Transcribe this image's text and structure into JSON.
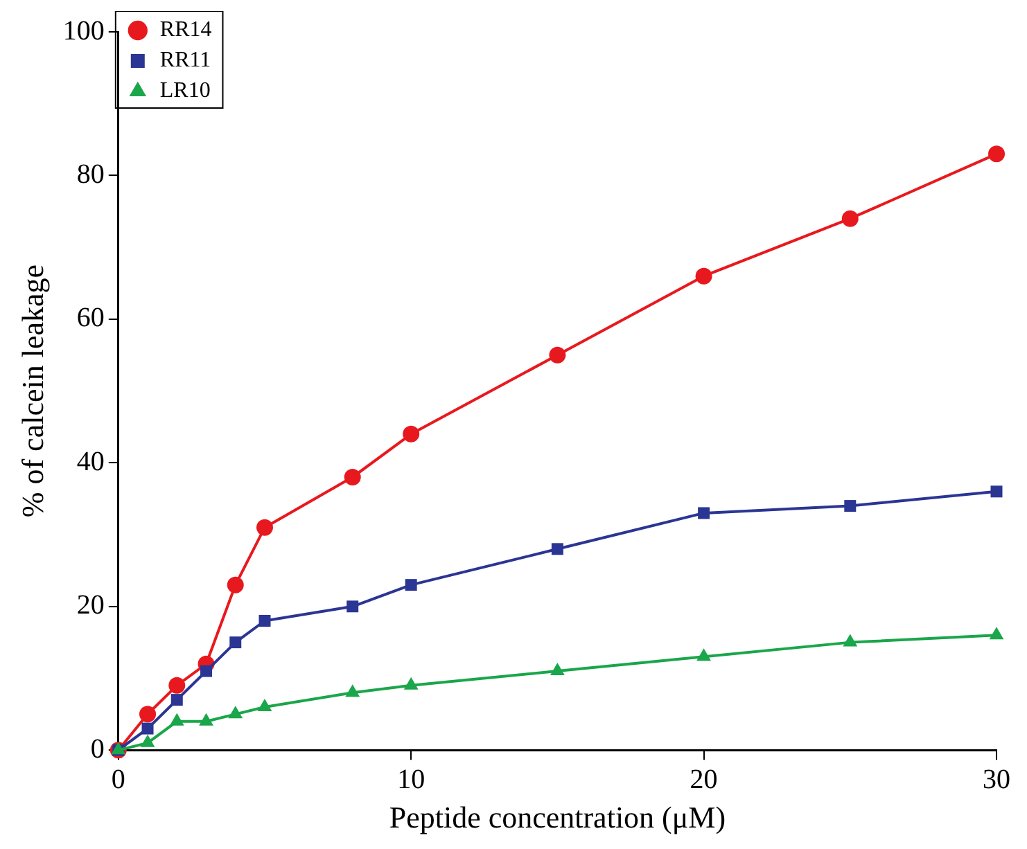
{
  "chart_data": {
    "type": "line",
    "xlabel": "Peptide concentration (μM)",
    "ylabel": "% of calcein leakage",
    "x": [
      0,
      1,
      2,
      3,
      4,
      5,
      8,
      10,
      15,
      20,
      25,
      30
    ],
    "series": [
      {
        "name": "RR14",
        "color": "#e8191e",
        "marker": "circle",
        "values": [
          0,
          5,
          9,
          12,
          23,
          31,
          38,
          44,
          55,
          66,
          74,
          83
        ]
      },
      {
        "name": "RR11",
        "color": "#2b3593",
        "marker": "square",
        "values": [
          0,
          3,
          7,
          11,
          15,
          18,
          20,
          23,
          28,
          33,
          34,
          36
        ]
      },
      {
        "name": "LR10",
        "color": "#1aa64a",
        "marker": "triangle",
        "values": [
          0,
          1,
          4,
          4,
          5,
          6,
          8,
          9,
          11,
          13,
          15,
          16
        ]
      }
    ],
    "xlim": [
      0,
      30
    ],
    "xticks": [
      0,
      10,
      20,
      30
    ],
    "ylim": [
      0,
      100
    ],
    "yticks": [
      0,
      20,
      40,
      60,
      80,
      100
    ],
    "grid": false,
    "legend": "top left"
  }
}
